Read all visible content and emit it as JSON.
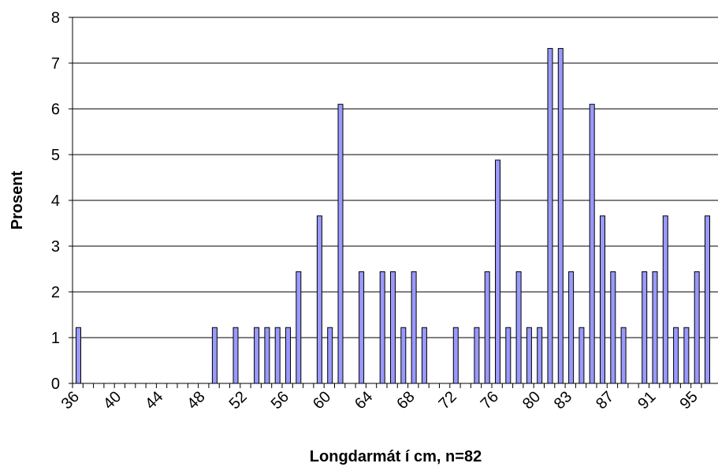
{
  "chart_data": {
    "type": "bar",
    "xlabel": "Longdarmát í cm, n=82",
    "ylabel": "Prosent",
    "ylim": [
      0,
      8
    ],
    "yticks": [
      "0",
      "1",
      "2",
      "3",
      "4",
      "5",
      "6",
      "7",
      "8"
    ],
    "grid": true,
    "categories": [
      "36",
      "37",
      "38",
      "39",
      "40",
      "41",
      "42",
      "43",
      "44",
      "45",
      "46",
      "47",
      "48",
      "49",
      "50",
      "51",
      "52",
      "53",
      "54",
      "55",
      "56",
      "57",
      "58",
      "59",
      "60",
      "61",
      "62",
      "63",
      "64",
      "65",
      "66",
      "67",
      "68",
      "69",
      "70",
      "71",
      "72",
      "73",
      "74",
      "75",
      "76",
      "77",
      "78",
      "79",
      "80",
      "81",
      "82",
      "83",
      "84",
      "85",
      "86",
      "87",
      "88",
      "89",
      "90",
      "91",
      "92",
      "93",
      "94",
      "95",
      "96"
    ],
    "values": [
      1.22,
      0,
      0,
      0,
      0,
      0,
      0,
      0,
      0,
      0,
      0,
      0,
      0,
      1.22,
      0,
      1.22,
      0,
      1.22,
      1.22,
      1.22,
      1.22,
      2.44,
      0,
      3.66,
      1.22,
      6.1,
      0,
      2.44,
      0,
      2.44,
      2.44,
      1.22,
      2.44,
      1.22,
      0,
      0,
      1.22,
      0,
      1.22,
      2.44,
      4.88,
      1.22,
      2.44,
      1.22,
      1.22,
      7.32,
      7.32,
      2.44,
      1.22,
      6.1,
      3.66,
      2.44,
      1.22,
      0,
      2.44,
      2.44,
      3.66,
      1.22,
      1.22,
      2.44,
      3.66
    ],
    "xtick_labels": [
      "36",
      "40",
      "44",
      "48",
      "52",
      "56",
      "60",
      "64",
      "68",
      "72",
      "76",
      "80",
      "83",
      "87",
      "91",
      "95"
    ],
    "xtick_label_categories": [
      "36",
      "40",
      "44",
      "48",
      "52",
      "56",
      "60",
      "64",
      "68",
      "72",
      "76",
      "80",
      "83",
      "87",
      "91",
      "95"
    ],
    "colors": {
      "bar_fill": "#9999ff",
      "bar_stroke": "#000000",
      "grid": "#000000"
    }
  }
}
